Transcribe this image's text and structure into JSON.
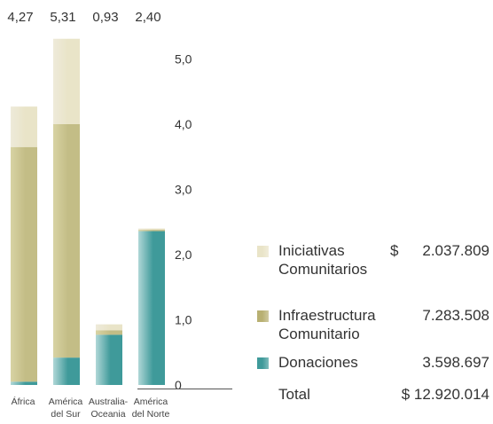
{
  "chart_data": {
    "type": "bar",
    "stacked": true,
    "title": "",
    "xlabel": "",
    "ylabel": "",
    "ylim": [
      0,
      5.5
    ],
    "yticks": [
      "0",
      "1,0",
      "2,0",
      "3,0",
      "4,0",
      "5,0"
    ],
    "grid": false,
    "legend_position": "right",
    "categories": [
      [
        "África"
      ],
      [
        "América",
        "del Sur"
      ],
      [
        "Australia-",
        "Oceania"
      ],
      [
        "América",
        "del Norte"
      ]
    ],
    "totals": [
      "4,27",
      "5,31",
      "0,93",
      "2,40"
    ],
    "series": [
      {
        "name": "Donaciones",
        "values": [
          0.05,
          0.42,
          0.77,
          2.36
        ],
        "color": "#3f9a9a",
        "color_light": "#b0d7d7"
      },
      {
        "name": "Infraestructura Comunitario",
        "values": [
          3.6,
          3.58,
          0.07,
          0.02
        ],
        "color": "#c3bd86",
        "color_light": "#d8d3a4"
      },
      {
        "name": "Iniciativas Comunitarios",
        "values": [
          0.62,
          1.31,
          0.09,
          0.02
        ],
        "color": "#e9e4c8",
        "color_light": "#eeeada"
      }
    ]
  },
  "legend": {
    "items": [
      {
        "label": "Iniciativas",
        "label2": "Comunitarios",
        "currency": "$",
        "value": "2.037.809",
        "color": "#e9e4c8"
      },
      {
        "label": "Infraestructura",
        "label2": "Comunitario",
        "currency": "",
        "value": "7.283.508",
        "color": "#b8b072"
      },
      {
        "label": "Donaciones",
        "label2": "",
        "currency": "",
        "value": "3.598.697",
        "color": "#3f9a9a"
      }
    ],
    "total": {
      "label": "Total",
      "currency": "$",
      "value": "12.920.014"
    }
  }
}
